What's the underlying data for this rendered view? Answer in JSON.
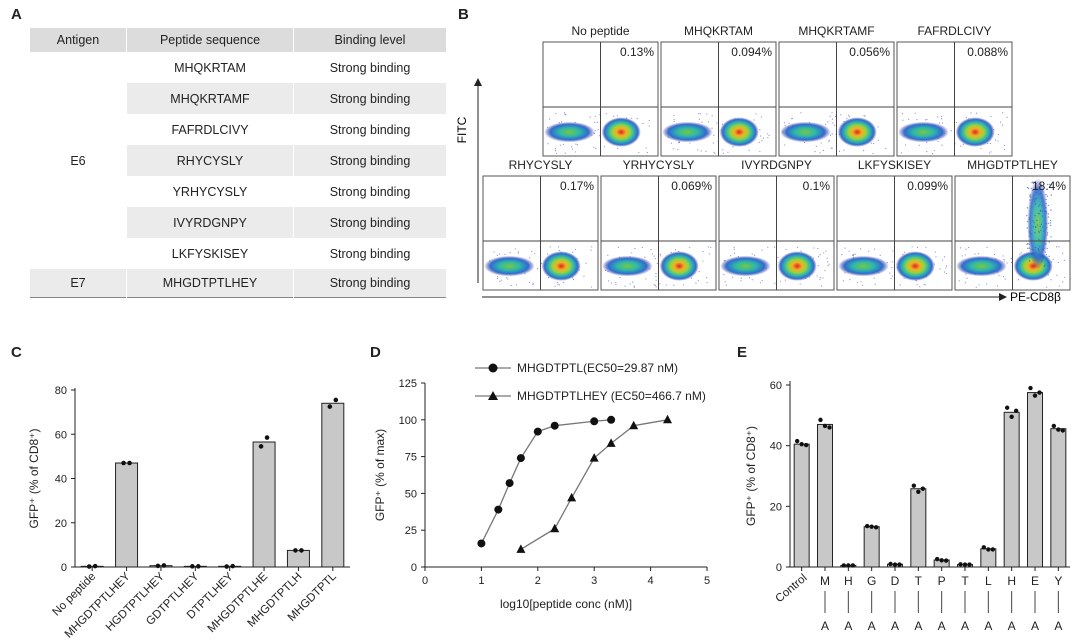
{
  "panel_labels": {
    "a": "A",
    "b": "B",
    "c": "C",
    "d": "D",
    "e": "E"
  },
  "table": {
    "headers": [
      "Antigen",
      "Peptide sequence",
      "Binding level"
    ],
    "groups": [
      {
        "antigen": "E6",
        "rows": [
          {
            "peptide": "MHQKRTAM",
            "binding": "Strong binding"
          },
          {
            "peptide": "MHQKRTAMF",
            "binding": "Strong binding"
          },
          {
            "peptide": "FAFRDLCIVY",
            "binding": "Strong binding"
          },
          {
            "peptide": "RHYCYSLY",
            "binding": "Strong binding"
          },
          {
            "peptide": "YRHYCYSLY",
            "binding": "Strong binding"
          },
          {
            "peptide": "IVYRDGNPY",
            "binding": "Strong binding"
          },
          {
            "peptide": "LKFYSKISEY",
            "binding": "Strong binding"
          }
        ]
      },
      {
        "antigen": "E7",
        "rows": [
          {
            "peptide": "MHGDTPTLHEY",
            "binding": "Strong binding"
          }
        ]
      }
    ]
  },
  "flow": {
    "y_axis_label": "FITC",
    "x_axis_label": "PE-CD8β",
    "plots": [
      {
        "title": "No peptide",
        "percent": "0.13%"
      },
      {
        "title": "MHQKRTAM",
        "percent": "0.094%"
      },
      {
        "title": "MHQKRTAMF",
        "percent": "0.056%"
      },
      {
        "title": "FAFRDLCIVY",
        "percent": "0.088%"
      },
      {
        "title": "RHYCYSLY",
        "percent": "0.17%"
      },
      {
        "title": "YRHYCYSLY",
        "percent": "0.069%"
      },
      {
        "title": "IVYRDGNPY",
        "percent": "0.1%"
      },
      {
        "title": "LKFYSKISEY",
        "percent": "0.099%"
      },
      {
        "title": "MHGDTPTLHEY",
        "percent": "18.4%"
      }
    ]
  },
  "chart_data": [
    {
      "panel": "C",
      "type": "bar",
      "ylabel": "GFP⁺ (% of CD8⁺)",
      "ylim": [
        0,
        80
      ],
      "yticks": [
        0,
        20,
        40,
        60,
        80
      ],
      "categories": [
        "No peptide",
        "MHGDTPTLHEY",
        "HGDTPTLHEY",
        "GDTPTLHEY",
        "DTPTLHEY",
        "MHGDTPTLHE",
        "MHGDTPTLH",
        "MHGDTPTL"
      ],
      "values": [
        0.3,
        47,
        0.6,
        0.3,
        0.3,
        56.5,
        7.5,
        74
      ],
      "points": [
        [
          0.2,
          0.4
        ],
        [
          47,
          47
        ],
        [
          0.5,
          0.7
        ],
        [
          0.3,
          0.3
        ],
        [
          0.2,
          0.4
        ],
        [
          54.5,
          58.5
        ],
        [
          7.5,
          7.5
        ],
        [
          72.5,
          75.5
        ]
      ]
    },
    {
      "panel": "D",
      "type": "line",
      "xlabel": "log10[peptide conc (nM)]",
      "ylabel": "GFP⁺ (% of max)",
      "xlim": [
        0,
        5
      ],
      "ylim": [
        0,
        125
      ],
      "xticks": [
        0,
        1,
        2,
        3,
        4,
        5
      ],
      "yticks": [
        0,
        25,
        50,
        75,
        100,
        125
      ],
      "series": [
        {
          "name": "MHGDTPTL(EC50=29.87 nM)",
          "marker": "circle",
          "x": [
            1.0,
            1.3,
            1.5,
            1.7,
            2.0,
            2.3,
            3.0,
            3.3
          ],
          "y": [
            16,
            39,
            57,
            74,
            92,
            96,
            99,
            100
          ]
        },
        {
          "name": "MHGDTPTLHEY (EC50=466.7 nM)",
          "marker": "triangle",
          "x": [
            1.7,
            2.3,
            2.6,
            3.0,
            3.3,
            3.7,
            4.3
          ],
          "y": [
            12,
            26,
            47,
            74,
            84,
            96,
            100
          ]
        }
      ]
    },
    {
      "panel": "E",
      "type": "bar",
      "ylabel": "GFP⁺ (% of CD8⁺)",
      "ylim": [
        0,
        60
      ],
      "yticks": [
        0,
        20,
        40,
        60
      ],
      "categories": [
        "Control",
        "M",
        "H",
        "G",
        "D",
        "T",
        "P",
        "T",
        "L",
        "H",
        "E",
        "Y"
      ],
      "substitution": [
        "",
        "A",
        "A",
        "A",
        "A",
        "A",
        "A",
        "A",
        "A",
        "A",
        "A",
        "A"
      ],
      "values": [
        40.5,
        47,
        0.5,
        13.3,
        0.9,
        25.8,
        2.3,
        0.8,
        6,
        51,
        57.5,
        45.6
      ],
      "points": [
        [
          41.5,
          40.5,
          40.2
        ],
        [
          48.5,
          46.5,
          46
        ],
        [
          0.5,
          0.5,
          0.5
        ],
        [
          13.5,
          13.3,
          13.1
        ],
        [
          1,
          0.8,
          0.8
        ],
        [
          26.8,
          24.8,
          25.8
        ],
        [
          2.6,
          2.2,
          2.1
        ],
        [
          0.9,
          0.8,
          0.8
        ],
        [
          6.5,
          5.8,
          5.8
        ],
        [
          52.5,
          49.5,
          51.5
        ],
        [
          59,
          56.5,
          57.5
        ],
        [
          46.5,
          45.3,
          45
        ]
      ]
    }
  ]
}
